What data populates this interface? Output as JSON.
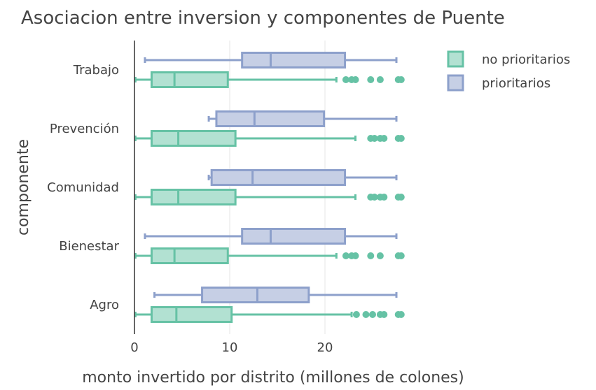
{
  "chart_data": {
    "type": "box",
    "orientation": "horizontal",
    "title": "Asociacion entre inversion y componentes de Puente",
    "xlabel": "monto invertido por distrito (millones de colones)",
    "ylabel": "componente",
    "xlim": [
      0,
      30
    ],
    "xticks": [
      0,
      10,
      20
    ],
    "grid": "vertical",
    "legend_position": "top-right",
    "categories": [
      "Agro",
      "Bienestar",
      "Comunidad",
      "Prevención",
      "Trabajo"
    ],
    "series": [
      {
        "name": "no prioritarios",
        "color": "#66c2a5",
        "fill": "#b2e1d2",
        "boxes": [
          {
            "min": 0.1,
            "q1": 1.8,
            "median": 4.4,
            "q3": 10.2,
            "max": 22.8,
            "outliers": [
              23.3,
              24.3,
              25.0,
              25.8,
              26.2,
              27.7,
              28.0
            ]
          },
          {
            "min": 0.1,
            "q1": 1.8,
            "median": 4.2,
            "q3": 9.8,
            "max": 21.2,
            "outliers": [
              22.2,
              22.8,
              23.2,
              24.8,
              25.8,
              27.7,
              28.0
            ]
          },
          {
            "min": 0.1,
            "q1": 1.8,
            "median": 4.6,
            "q3": 10.6,
            "max": 23.2,
            "outliers": [
              24.8,
              25.2,
              25.8,
              26.2,
              27.7,
              28.0
            ]
          },
          {
            "min": 0.1,
            "q1": 1.8,
            "median": 4.6,
            "q3": 10.6,
            "max": 23.2,
            "outliers": [
              24.8,
              25.2,
              25.8,
              26.2,
              27.7,
              28.0
            ]
          },
          {
            "min": 0.1,
            "q1": 1.8,
            "median": 4.2,
            "q3": 9.8,
            "max": 21.2,
            "outliers": [
              22.2,
              22.8,
              23.2,
              24.8,
              25.8,
              27.7,
              28.0
            ]
          }
        ]
      },
      {
        "name": "prioritarios",
        "color": "#8da0cb",
        "fill": "#c6cfe5",
        "boxes": [
          {
            "min": 2.1,
            "q1": 7.1,
            "median": 12.9,
            "q3": 18.3,
            "max": 27.5,
            "outliers": []
          },
          {
            "min": 1.1,
            "q1": 11.3,
            "median": 14.3,
            "q3": 22.1,
            "max": 27.5,
            "outliers": []
          },
          {
            "min": 7.8,
            "q1": 8.1,
            "median": 12.4,
            "q3": 22.1,
            "max": 27.5,
            "outliers": []
          },
          {
            "min": 7.8,
            "q1": 8.6,
            "median": 12.6,
            "q3": 19.9,
            "max": 27.5,
            "outliers": []
          },
          {
            "min": 1.1,
            "q1": 11.3,
            "median": 14.3,
            "q3": 22.1,
            "max": 27.5,
            "outliers": []
          }
        ]
      }
    ]
  }
}
